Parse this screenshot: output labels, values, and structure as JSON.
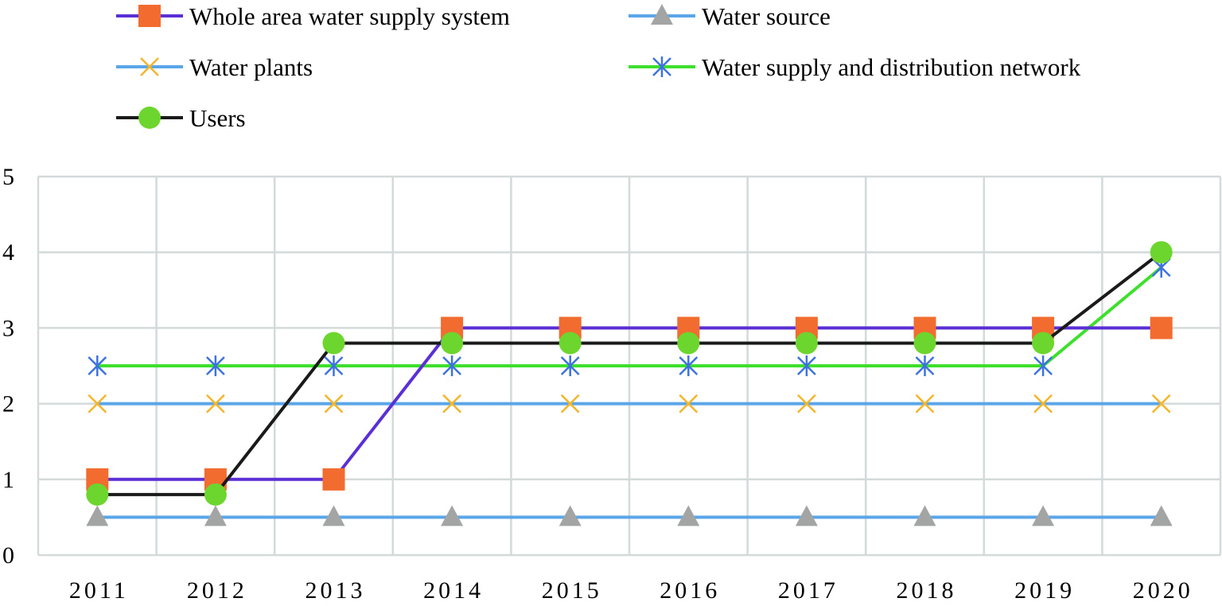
{
  "chart_data": {
    "type": "line",
    "title": "",
    "xlabel": "",
    "ylabel": "",
    "categories": [
      "2011",
      "2012",
      "2013",
      "2014",
      "2015",
      "2016",
      "2017",
      "2018",
      "2019",
      "2020"
    ],
    "ylim": [
      0,
      5
    ],
    "yticks": [
      "0",
      "1",
      "2",
      "3",
      "4",
      "5"
    ],
    "grid": true,
    "legend_position": "top",
    "series": [
      {
        "name": "Whole area water supply system",
        "line_color": "#5b2fd6",
        "marker": "square",
        "marker_color": "#f26b2f",
        "values": [
          1,
          1,
          1,
          3,
          3,
          3,
          3,
          3,
          3,
          3
        ]
      },
      {
        "name": "Water source",
        "line_color": "#5ba6e8",
        "marker": "triangle",
        "marker_color": "#a3a5a4",
        "values": [
          0.5,
          0.5,
          0.5,
          0.5,
          0.5,
          0.5,
          0.5,
          0.5,
          0.5,
          0.5
        ]
      },
      {
        "name": "Water plants",
        "line_color": "#5ba6e8",
        "marker": "x",
        "marker_color": "#f5b52a",
        "values": [
          2,
          2,
          2,
          2,
          2,
          2,
          2,
          2,
          2,
          2
        ]
      },
      {
        "name": "Water supply and distribution network",
        "line_color": "#3ee02d",
        "marker": "asterisk",
        "marker_color": "#3d72e0",
        "values": [
          2.5,
          2.5,
          2.5,
          2.5,
          2.5,
          2.5,
          2.5,
          2.5,
          2.5,
          3.8
        ]
      },
      {
        "name": "Users",
        "line_color": "#1a1a1a",
        "marker": "circle",
        "marker_color": "#6dd62e",
        "values": [
          0.8,
          0.8,
          2.8,
          2.8,
          2.8,
          2.8,
          2.8,
          2.8,
          2.8,
          4
        ]
      }
    ]
  }
}
